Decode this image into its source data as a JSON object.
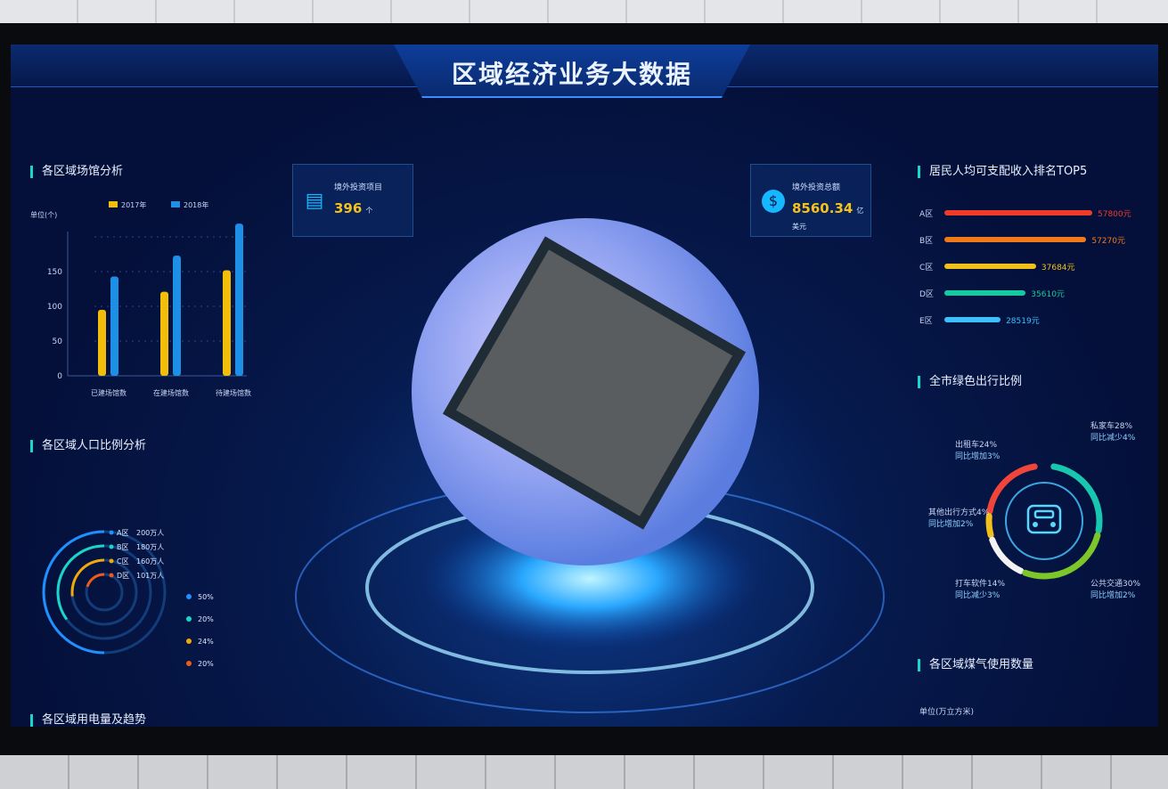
{
  "header": {
    "title": "区域经济业务大数据"
  },
  "cards": [
    {
      "label": "境外投资项目",
      "value": "396",
      "unit": "个",
      "icon": "file-list-icon"
    },
    {
      "label": "境外投资总额",
      "value": "8560.34",
      "unit": "亿美元",
      "icon": "dollar-icon"
    }
  ],
  "sections": {
    "venue": "各区域场馆分析",
    "population": "各区域人口比例分析",
    "electricity": "各区域用电量及趋势",
    "income": "居民人均可支配收入排名TOP5",
    "green": "全市绿色出行比例",
    "gas": "各区域煤气使用数量"
  },
  "chart_data": {
    "type": "bar",
    "ylabel": "单位(个)",
    "categories": [
      "已建场馆数",
      "在建场馆数",
      "待建场馆数"
    ],
    "yticks": [
      0,
      50,
      100,
      150
    ],
    "ylim": [
      0,
      250
    ],
    "grid": true,
    "legend": "top",
    "series": [
      {
        "name": "2017年",
        "color": "#f2be0a",
        "values": [
          95,
          121,
          152
        ]
      },
      {
        "name": "2018年",
        "color": "#1e8fe6",
        "values": [
          143,
          173,
          219
        ]
      }
    ]
  },
  "population": {
    "items": [
      {
        "label": "A区",
        "value": "200万人",
        "pct": "50%",
        "color": "#1e90ff"
      },
      {
        "label": "B区",
        "value": "180万人",
        "pct": "20%",
        "color": "#1ad6c8"
      },
      {
        "label": "C区",
        "value": "160万人",
        "pct": "24%",
        "color": "#f2a80a"
      },
      {
        "label": "D区",
        "value": "101万人",
        "pct": "20%",
        "color": "#f05a14"
      }
    ]
  },
  "income": {
    "items": [
      {
        "label": "A区",
        "value": "57800元",
        "share": 1.0,
        "color": "#f03a2a"
      },
      {
        "label": "B区",
        "value": "57270元",
        "share": 0.96,
        "color": "#f07a1a"
      },
      {
        "label": "C区",
        "value": "37684元",
        "share": 0.62,
        "color": "#f2c01a"
      },
      {
        "label": "D区",
        "value": "35610元",
        "share": 0.55,
        "color": "#16c9a0"
      },
      {
        "label": "E区",
        "value": "28519元",
        "share": 0.38,
        "color": "#3cc0ff"
      }
    ]
  },
  "green": {
    "icon": "car-icon",
    "items": [
      {
        "name": "私家车28%",
        "change": "同比减少4%",
        "color": "#19c6b0"
      },
      {
        "name": "出租车24%",
        "change": "同比增加3%",
        "color": "#f0453a"
      },
      {
        "name": "其他出行方式4%",
        "change": "同比增加2%",
        "color": "#f2c01a"
      },
      {
        "name": "打车软件14%",
        "change": "同比减少3%",
        "color": "#f2f2f2"
      },
      {
        "name": "公共交通30%",
        "change": "同比增加2%",
        "color": "#7cc62a"
      }
    ]
  },
  "gas": {
    "unit": "单位(万立方米)"
  }
}
